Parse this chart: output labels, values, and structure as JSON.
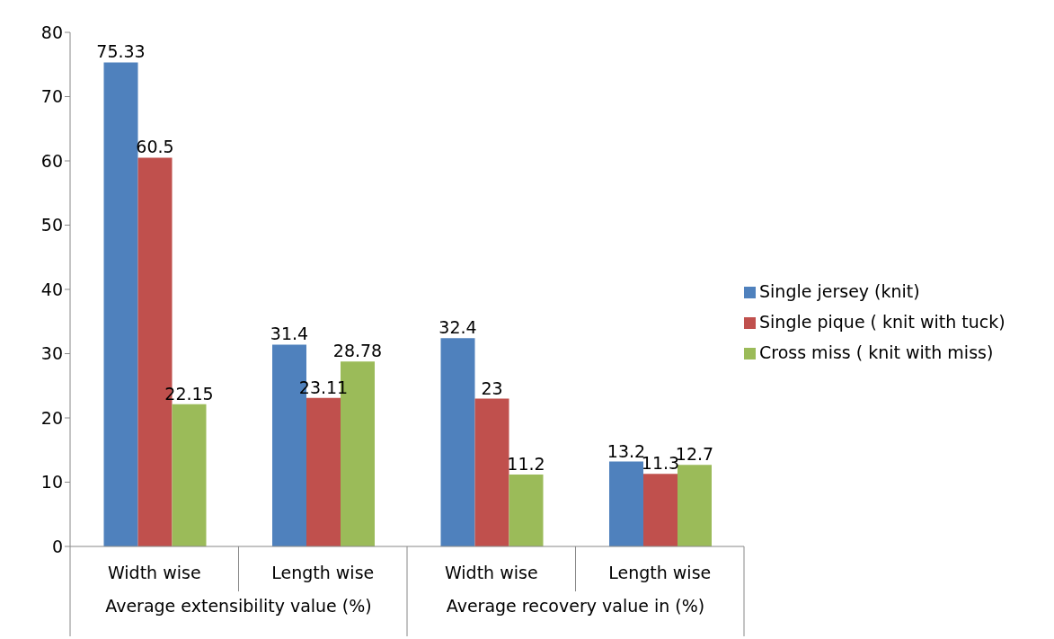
{
  "chart_data": {
    "type": "bar",
    "categories": [
      "Width wise",
      "Length wise",
      "Width wise",
      "Length wise"
    ],
    "series": [
      {
        "name": "Single jersey (knit)",
        "color": "#4f81bd",
        "values": [
          75.33,
          31.4,
          32.4,
          13.2
        ]
      },
      {
        "name": "Single pique ( knit with tuck)",
        "color": "#c0504d",
        "values": [
          60.5,
          23.11,
          23,
          11.3
        ]
      },
      {
        "name": "Cross miss ( knit with miss)",
        "color": "#9bbb59",
        "values": [
          22.15,
          28.78,
          11.2,
          12.7
        ]
      }
    ],
    "ylim": [
      0,
      80
    ],
    "yticks": [
      0,
      10,
      20,
      30,
      40,
      50,
      60,
      70,
      80
    ],
    "grid": false,
    "legend": "right",
    "data_labels": true,
    "annotations": [
      "Average extensibility value (%)",
      "Average recovery value in (%)"
    ]
  }
}
